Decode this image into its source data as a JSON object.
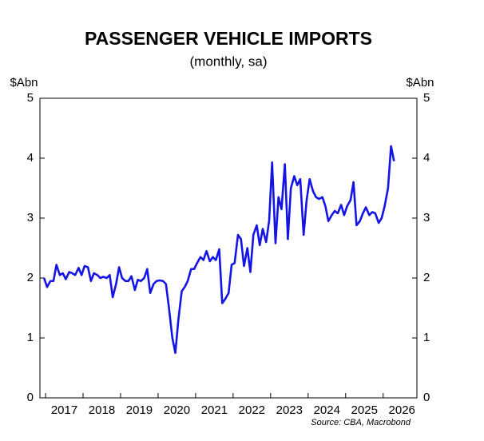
{
  "chart_data": {
    "type": "line",
    "title": "PASSENGER VEHICLE IMPORTS",
    "subtitle": "(monthly, sa)",
    "y_label": "$Abn",
    "y2_label": "$Abn",
    "source": "Source: CBA, Macrobond",
    "xlim": [
      2016.85,
      2026.9
    ],
    "xticks": [
      {
        "value": 2017,
        "label": "2017"
      },
      {
        "value": 2018,
        "label": "2018"
      },
      {
        "value": 2019,
        "label": "2019"
      },
      {
        "value": 2020,
        "label": "2020"
      },
      {
        "value": 2021,
        "label": "2021"
      },
      {
        "value": 2022,
        "label": "2022"
      },
      {
        "value": 2023,
        "label": "2023"
      },
      {
        "value": 2024,
        "label": "2024"
      },
      {
        "value": 2025,
        "label": "2025"
      },
      {
        "value": 2026,
        "label": "2026"
      }
    ],
    "ylim": [
      0,
      5
    ],
    "yticks": [
      0,
      1,
      2,
      3,
      4,
      5
    ],
    "y2lim": [
      0,
      5
    ],
    "y2ticks": [
      0,
      1,
      2,
      3,
      4,
      5
    ],
    "grid": false,
    "x": [
      2016.96,
      2017.04,
      2017.13,
      2017.21,
      2017.29,
      2017.38,
      2017.46,
      2017.54,
      2017.63,
      2017.71,
      2017.79,
      2017.88,
      2017.96,
      2018.04,
      2018.13,
      2018.21,
      2018.29,
      2018.38,
      2018.46,
      2018.54,
      2018.63,
      2018.71,
      2018.79,
      2018.88,
      2018.96,
      2019.04,
      2019.13,
      2019.21,
      2019.29,
      2019.38,
      2019.46,
      2019.54,
      2019.63,
      2019.71,
      2019.79,
      2019.88,
      2019.96,
      2020.04,
      2020.13,
      2020.21,
      2020.29,
      2020.38,
      2020.46,
      2020.54,
      2020.63,
      2020.71,
      2020.79,
      2020.88,
      2020.96,
      2021.04,
      2021.13,
      2021.21,
      2021.29,
      2021.38,
      2021.46,
      2021.54,
      2021.63,
      2021.71,
      2021.79,
      2021.88,
      2021.96,
      2022.04,
      2022.13,
      2022.21,
      2022.29,
      2022.38,
      2022.46,
      2022.54,
      2022.63,
      2022.71,
      2022.79,
      2022.88,
      2022.96,
      2023.04,
      2023.13,
      2023.21,
      2023.29,
      2023.38,
      2023.46,
      2023.54,
      2023.63,
      2023.71,
      2023.79,
      2023.88,
      2023.96,
      2024.04,
      2024.13,
      2024.21,
      2024.29,
      2024.38,
      2024.46,
      2024.54,
      2024.63,
      2024.71,
      2024.79,
      2024.88,
      2024.96,
      2025.04,
      2025.13,
      2025.21,
      2025.29,
      2025.38,
      2025.46,
      2025.54,
      2025.63,
      2025.71,
      2025.79,
      2025.88,
      2025.96,
      2026.04,
      2026.13,
      2026.21,
      2026.29
    ],
    "series": [
      {
        "color": "#1414e6",
        "values": [
          2.0,
          1.85,
          1.95,
          1.95,
          2.22,
          2.05,
          2.08,
          1.98,
          2.1,
          2.08,
          2.05,
          2.17,
          2.05,
          2.2,
          2.18,
          1.95,
          2.08,
          2.05,
          2.0,
          2.02,
          2.0,
          2.05,
          1.68,
          1.9,
          2.18,
          2.0,
          1.95,
          1.95,
          2.03,
          1.8,
          1.97,
          1.95,
          2.0,
          2.15,
          1.75,
          1.9,
          1.95,
          1.96,
          1.95,
          1.9,
          1.5,
          1.0,
          0.75,
          1.3,
          1.78,
          1.85,
          1.95,
          2.15,
          2.15,
          2.25,
          2.35,
          2.3,
          2.45,
          2.28,
          2.35,
          2.3,
          2.48,
          1.58,
          1.65,
          1.75,
          2.22,
          2.25,
          2.72,
          2.65,
          2.2,
          2.5,
          2.1,
          2.72,
          2.88,
          2.55,
          2.82,
          2.6,
          2.95,
          3.93,
          2.58,
          3.35,
          3.15,
          3.9,
          2.65,
          3.5,
          3.7,
          3.55,
          3.65,
          2.72,
          3.3,
          3.65,
          3.45,
          3.35,
          3.32,
          3.35,
          3.2,
          2.95,
          3.05,
          3.12,
          3.08,
          3.22,
          3.05,
          3.2,
          3.3,
          3.6,
          2.88,
          2.95,
          3.08,
          3.18,
          3.05,
          3.1,
          3.08,
          2.92,
          3.0,
          3.2,
          3.5,
          4.2,
          3.95
        ]
      }
    ]
  }
}
